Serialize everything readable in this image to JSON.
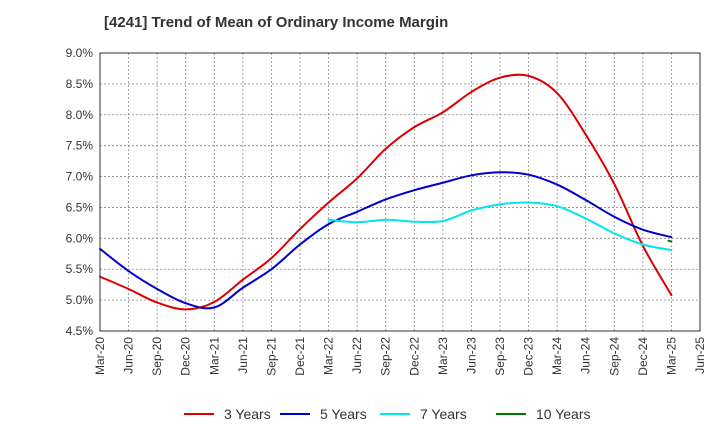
{
  "chart_data": {
    "type": "line",
    "title": "[4241]  Trend of Mean of Ordinary Income Margin",
    "xlabel": "",
    "ylabel": "",
    "x": [
      "Mar-20",
      "Jun-20",
      "Sep-20",
      "Dec-20",
      "Mar-21",
      "Jun-21",
      "Sep-21",
      "Dec-21",
      "Mar-22",
      "Jun-22",
      "Sep-22",
      "Dec-22",
      "Mar-23",
      "Jun-23",
      "Sep-23",
      "Dec-23",
      "Mar-24",
      "Jun-24",
      "Sep-24",
      "Dec-24",
      "Mar-25"
    ],
    "x_ticks": [
      "Mar-20",
      "Jun-20",
      "Sep-20",
      "Dec-20",
      "Mar-21",
      "Jun-21",
      "Sep-21",
      "Dec-21",
      "Mar-22",
      "Jun-22",
      "Sep-22",
      "Dec-22",
      "Mar-23",
      "Jun-23",
      "Sep-23",
      "Dec-23",
      "Mar-24",
      "Jun-24",
      "Sep-24",
      "Dec-24",
      "Mar-25",
      "Jun-25"
    ],
    "y_ticks": [
      "9.0%",
      "8.5%",
      "8.0%",
      "7.5%",
      "7.0%",
      "6.5%",
      "6.0%",
      "5.5%",
      "5.0%",
      "4.5%"
    ],
    "ylim": [
      4.5,
      9.0
    ],
    "grid": true,
    "legend_position": "bottom",
    "series": [
      {
        "name": "3 Years",
        "color": "#dd0000",
        "values": [
          5.38,
          5.18,
          4.96,
          4.85,
          4.97,
          5.33,
          5.68,
          6.15,
          6.58,
          6.97,
          7.45,
          7.8,
          8.04,
          8.37,
          8.6,
          8.63,
          8.35,
          7.68,
          6.88,
          5.88,
          5.08
        ]
      },
      {
        "name": "5 Years",
        "color": "#0000cc",
        "values": [
          5.83,
          5.47,
          5.18,
          4.95,
          4.88,
          5.2,
          5.5,
          5.9,
          6.23,
          6.43,
          6.63,
          6.78,
          6.9,
          7.02,
          7.07,
          7.03,
          6.87,
          6.62,
          6.35,
          6.14,
          6.02
        ]
      },
      {
        "name": "7 Years",
        "color": "#00e5ee",
        "values": [
          null,
          null,
          null,
          null,
          null,
          null,
          null,
          null,
          6.3,
          6.26,
          6.3,
          6.27,
          6.28,
          6.45,
          6.55,
          6.58,
          6.52,
          6.32,
          6.08,
          5.9,
          5.81
        ]
      },
      {
        "name": "10 Years",
        "color": "#007700",
        "values": [
          null,
          null,
          null,
          null,
          null,
          null,
          null,
          null,
          null,
          null,
          null,
          null,
          null,
          null,
          null,
          null,
          null,
          null,
          null,
          null,
          5.95
        ]
      }
    ]
  }
}
